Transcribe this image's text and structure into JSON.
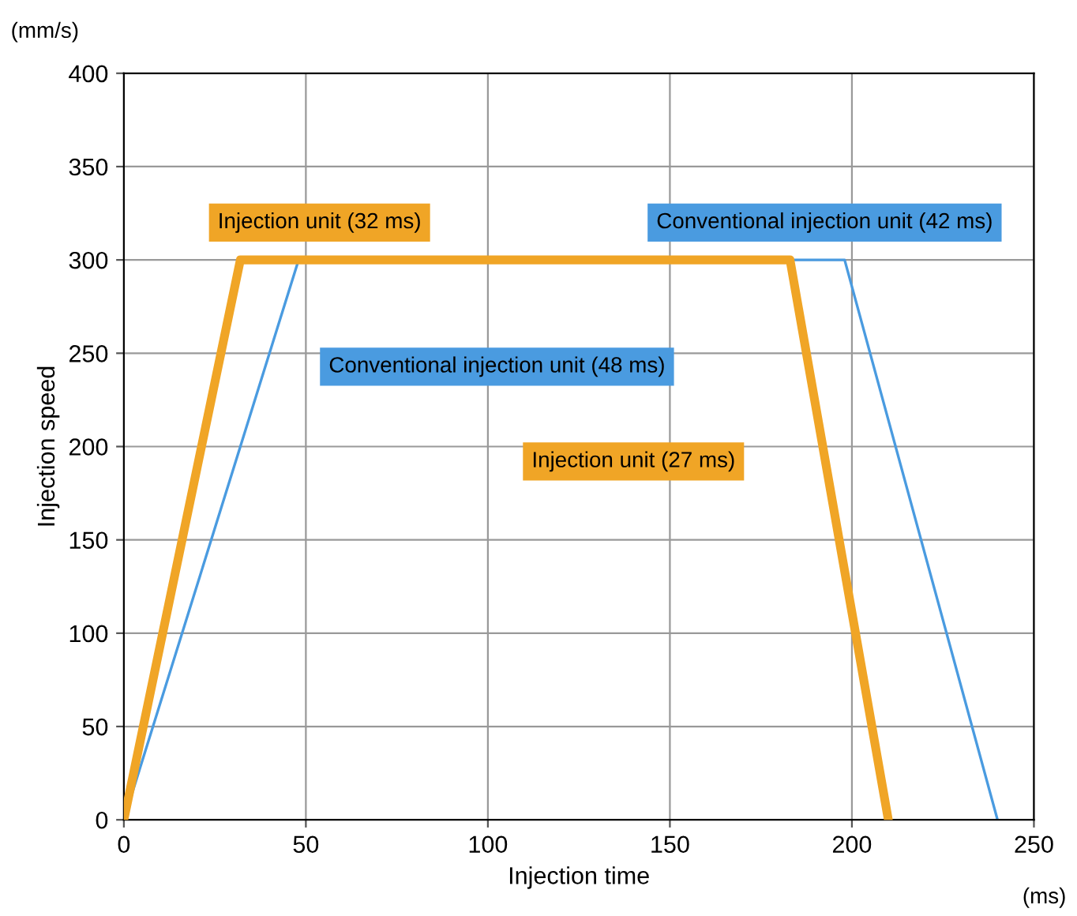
{
  "chart_data": {
    "type": "line",
    "xlabel": "Injection time",
    "ylabel": "Injection speed",
    "series": [
      {
        "color": "#f0a526",
        "x": [
          0,
          32,
          183,
          210
        ],
        "values": [
          0,
          300,
          300,
          0
        ]
      },
      {
        "color": "#4a9be0",
        "x": [
          0,
          48,
          198,
          240
        ],
        "values": [
          0,
          300,
          300,
          0
        ]
      }
    ],
    "annotations": [
      "Injection unit (32 ms)",
      "Conventional injection unit (48 ms)",
      "Injection unit (27 ms)",
      "Conventional injection unit (42 ms)",
      "(mm/s)",
      "(ms)"
    ],
    "xlim": [
      0,
      250
    ],
    "xticks": [
      0,
      50,
      100,
      150,
      200,
      250
    ],
    "ylim": [
      0,
      400
    ],
    "yticks": [
      0,
      50,
      100,
      150,
      200,
      250,
      300,
      350,
      400
    ],
    "grid": true,
    "marker": "none",
    "line_style": "solid"
  }
}
